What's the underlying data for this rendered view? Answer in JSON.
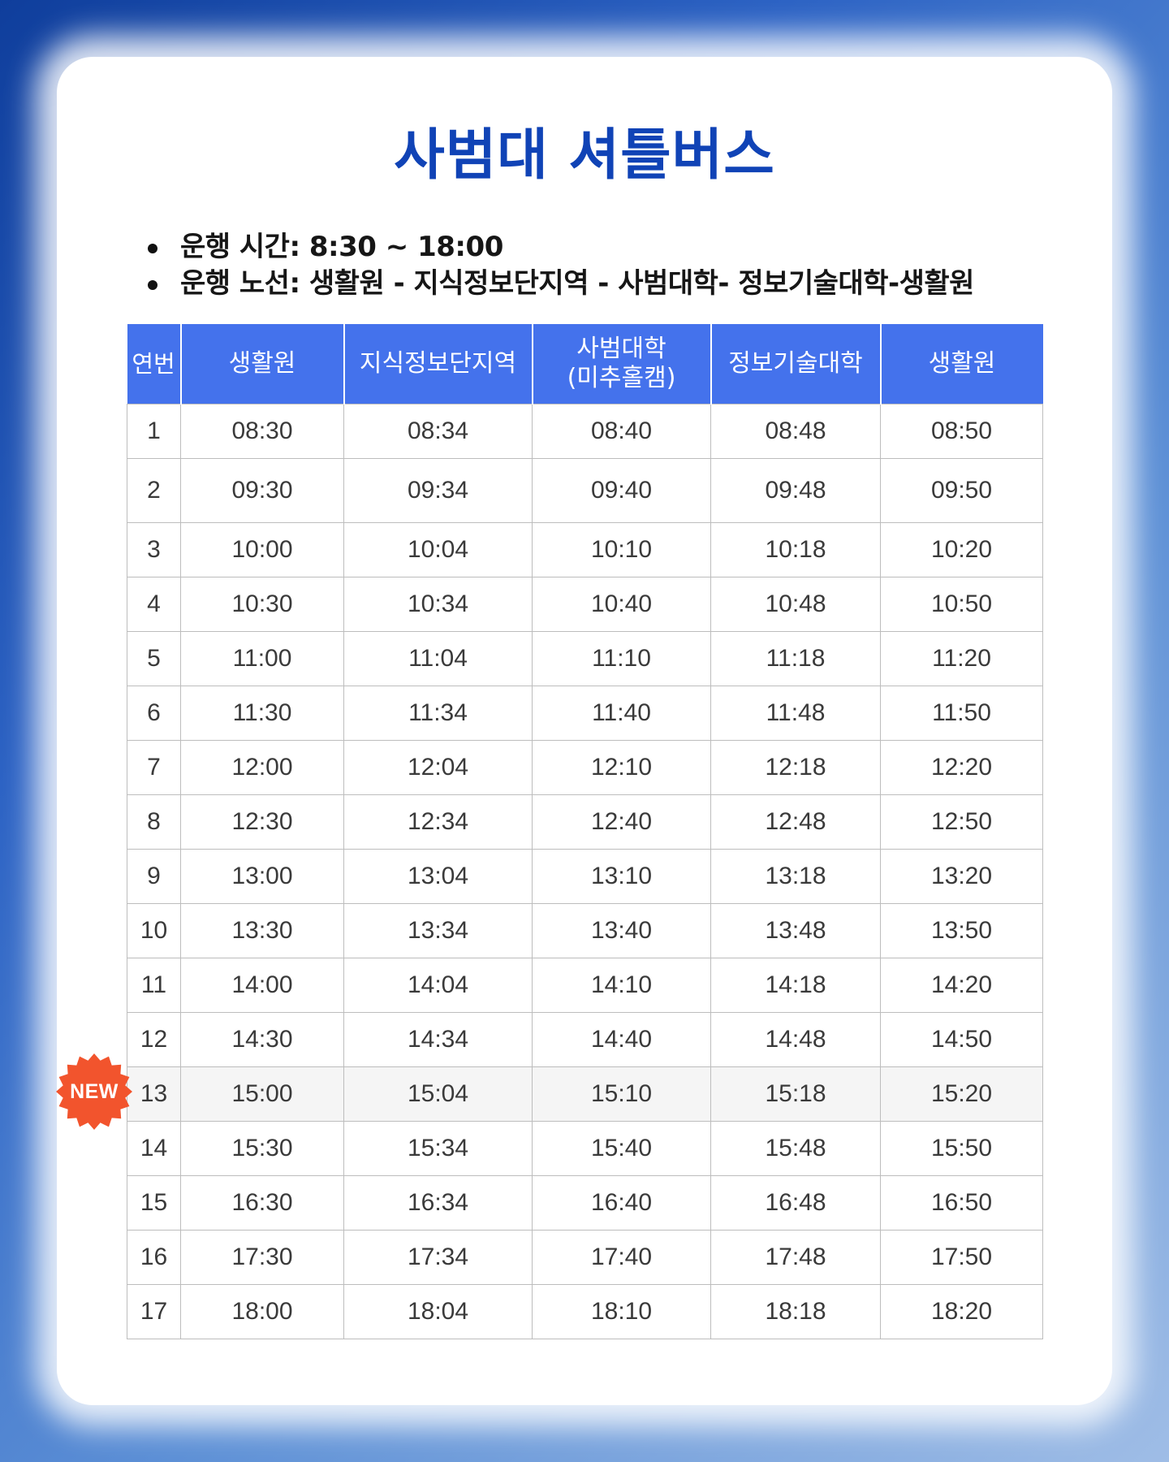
{
  "title": "사범대 셔틀버스",
  "info": {
    "hours": "운행 시간: 8:30 ~ 18:00",
    "route": "운행 노선: 생활원 - 지식정보단지역 - 사범대학- 정보기술대학-생활원"
  },
  "table": {
    "headers": [
      "연번",
      "생활원",
      "지식정보단지역",
      "사범대학",
      "정보기술대학",
      "생활원"
    ],
    "header_sub": "(미추홀캠)",
    "rows": [
      [
        "1",
        "08:30",
        "08:34",
        "08:40",
        "08:48",
        "08:50"
      ],
      [
        "2",
        "09:30",
        "09:34",
        "09:40",
        "09:48",
        "09:50"
      ],
      [
        "3",
        "10:00",
        "10:04",
        "10:10",
        "10:18",
        "10:20"
      ],
      [
        "4",
        "10:30",
        "10:34",
        "10:40",
        "10:48",
        "10:50"
      ],
      [
        "5",
        "11:00",
        "11:04",
        "11:10",
        "11:18",
        "11:20"
      ],
      [
        "6",
        "11:30",
        "11:34",
        "11:40",
        "11:48",
        "11:50"
      ],
      [
        "7",
        "12:00",
        "12:04",
        "12:10",
        "12:18",
        "12:20"
      ],
      [
        "8",
        "12:30",
        "12:34",
        "12:40",
        "12:48",
        "12:50"
      ],
      [
        "9",
        "13:00",
        "13:04",
        "13:10",
        "13:18",
        "13:20"
      ],
      [
        "10",
        "13:30",
        "13:34",
        "13:40",
        "13:48",
        "13:50"
      ],
      [
        "11",
        "14:00",
        "14:04",
        "14:10",
        "14:18",
        "14:20"
      ],
      [
        "12",
        "14:30",
        "14:34",
        "14:40",
        "14:48",
        "14:50"
      ],
      [
        "13",
        "15:00",
        "15:04",
        "15:10",
        "15:18",
        "15:20"
      ],
      [
        "14",
        "15:30",
        "15:34",
        "15:40",
        "15:48",
        "15:50"
      ],
      [
        "15",
        "16:30",
        "16:34",
        "16:40",
        "16:48",
        "16:50"
      ],
      [
        "16",
        "17:30",
        "17:34",
        "17:40",
        "17:48",
        "17:50"
      ],
      [
        "17",
        "18:00",
        "18:04",
        "18:10",
        "18:18",
        "18:20"
      ]
    ]
  },
  "badge": {
    "label": "NEW",
    "color": "#f2542d"
  },
  "colors": {
    "accent": "#1043b6",
    "header_bg": "#4472ec"
  }
}
